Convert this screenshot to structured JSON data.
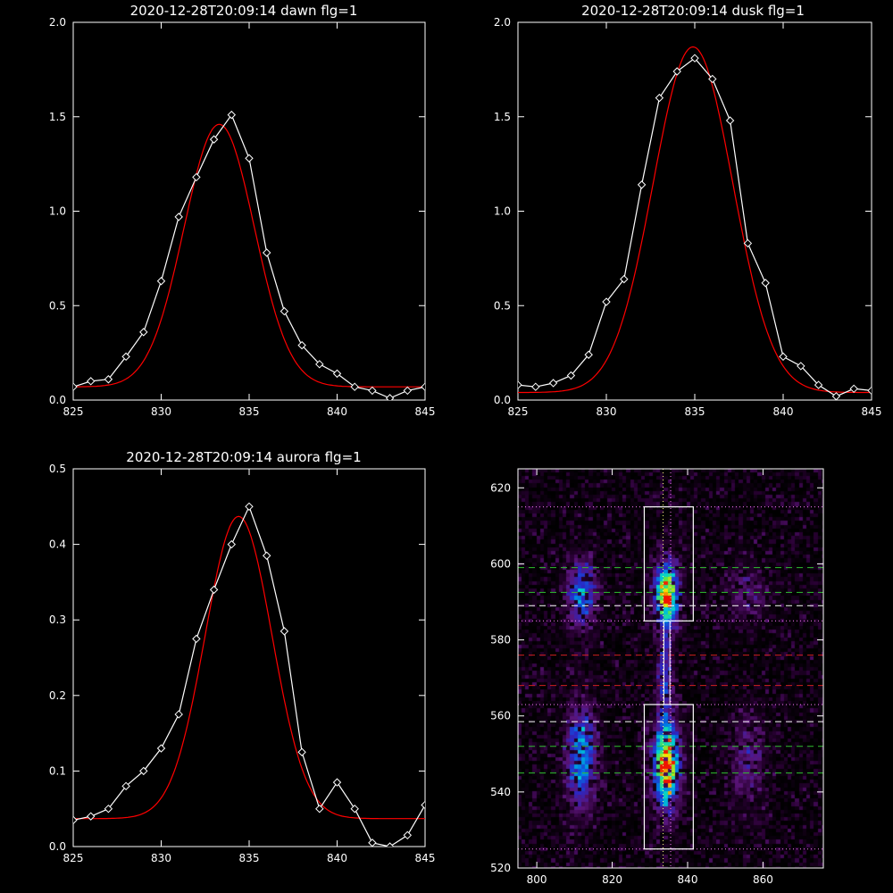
{
  "chart_data": [
    {
      "type": "line",
      "title": "2020-12-28T20:09:14 dawn flg=1",
      "xlim": [
        825,
        845
      ],
      "ylim": [
        0,
        2.0
      ],
      "xticks": [
        825,
        830,
        835,
        840,
        845
      ],
      "yticks": [
        0.0,
        0.5,
        1.0,
        1.5,
        2.0
      ],
      "xtick_labels": [
        "825",
        "830",
        "835",
        "840",
        "845"
      ],
      "ytick_labels": [
        "0.0",
        "0.5",
        "1.0",
        "1.5",
        "2.0"
      ],
      "series": [
        {
          "color": "#ffffff",
          "markers": "diamond",
          "x": [
            825,
            826,
            827,
            828,
            829,
            830,
            831,
            832,
            833,
            834,
            835,
            836,
            837,
            838,
            839,
            840,
            841,
            842,
            843,
            844,
            845
          ],
          "y": [
            0.07,
            0.1,
            0.11,
            0.23,
            0.36,
            0.63,
            0.97,
            1.18,
            1.38,
            1.51,
            1.28,
            0.78,
            0.47,
            0.29,
            0.19,
            0.14,
            0.07,
            0.05,
            0.01,
            0.05,
            0.07
          ]
        },
        {
          "color": "#ff0000",
          "markers": "none",
          "fit": {
            "amplitude": 1.39,
            "center": 833.3,
            "sigma": 2.0,
            "offset": 0.07
          }
        }
      ]
    },
    {
      "type": "line",
      "title": "2020-12-28T20:09:14 dusk flg=1",
      "xlim": [
        825,
        845
      ],
      "ylim": [
        0,
        2.0
      ],
      "xticks": [
        825,
        830,
        835,
        840,
        845
      ],
      "yticks": [
        0.0,
        0.5,
        1.0,
        1.5,
        2.0
      ],
      "xtick_labels": [
        "825",
        "830",
        "835",
        "840",
        "845"
      ],
      "ytick_labels": [
        "0.0",
        "0.5",
        "1.0",
        "1.5",
        "2.0"
      ],
      "series": [
        {
          "color": "#ffffff",
          "markers": "diamond",
          "x": [
            825,
            826,
            827,
            828,
            829,
            830,
            831,
            832,
            833,
            834,
            835,
            836,
            837,
            838,
            839,
            840,
            841,
            842,
            843,
            844,
            845
          ],
          "y": [
            0.08,
            0.07,
            0.09,
            0.13,
            0.24,
            0.52,
            0.64,
            1.14,
            1.6,
            1.74,
            1.81,
            1.7,
            1.48,
            0.83,
            0.62,
            0.23,
            0.18,
            0.08,
            0.02,
            0.06,
            0.05
          ]
        },
        {
          "color": "#ff0000",
          "markers": "none",
          "fit": {
            "amplitude": 1.83,
            "center": 834.9,
            "sigma": 2.25,
            "offset": 0.04
          }
        }
      ]
    },
    {
      "type": "line",
      "title": "2020-12-28T20:09:14 aurora flg=1",
      "xlim": [
        825,
        845
      ],
      "ylim": [
        0,
        0.5
      ],
      "xticks": [
        825,
        830,
        835,
        840,
        845
      ],
      "yticks": [
        0.0,
        0.1,
        0.2,
        0.3,
        0.4,
        0.5
      ],
      "xtick_labels": [
        "825",
        "830",
        "835",
        "840",
        "845"
      ],
      "ytick_labels": [
        "0.0",
        "0.1",
        "0.2",
        "0.3",
        "0.4",
        "0.5"
      ],
      "series": [
        {
          "color": "#ffffff",
          "markers": "diamond",
          "x": [
            825,
            826,
            827,
            828,
            829,
            830,
            831,
            832,
            833,
            834,
            835,
            836,
            837,
            838,
            839,
            840,
            841,
            842,
            843,
            844,
            845
          ],
          "y": [
            0.035,
            0.04,
            0.05,
            0.08,
            0.1,
            0.13,
            0.175,
            0.275,
            0.34,
            0.4,
            0.45,
            0.385,
            0.285,
            0.125,
            0.05,
            0.085,
            0.05,
            0.005,
            0.0,
            0.015,
            0.055
          ]
        },
        {
          "color": "#ff0000",
          "markers": "none",
          "fit": {
            "amplitude": 0.4,
            "center": 834.4,
            "sigma": 1.9,
            "offset": 0.037
          }
        }
      ]
    },
    {
      "type": "heatmap",
      "title": "",
      "xlim": [
        795,
        876
      ],
      "ylim": [
        520,
        625
      ],
      "xticks": [
        800,
        820,
        840,
        860
      ],
      "yticks": [
        520,
        540,
        560,
        580,
        600,
        620
      ],
      "xtick_labels": [
        "800",
        "820",
        "840",
        "860"
      ],
      "ytick_labels": [
        "520",
        "540",
        "560",
        "580",
        "600",
        "620"
      ],
      "blobs": [
        {
          "x": 834.5,
          "y": 592,
          "sx": 2.2,
          "sy": 5.5,
          "amp": 0.95
        },
        {
          "x": 834.5,
          "y": 547,
          "sx": 2.3,
          "sy": 7.5,
          "amp": 1.0
        },
        {
          "x": 834.0,
          "y": 570,
          "sx": 1.3,
          "sy": 9,
          "amp": 0.35
        },
        {
          "x": 812,
          "y": 592,
          "sx": 2.6,
          "sy": 6,
          "amp": 0.5
        },
        {
          "x": 812,
          "y": 549,
          "sx": 2.6,
          "sy": 9,
          "amp": 0.55
        },
        {
          "x": 856,
          "y": 592,
          "sx": 3.2,
          "sy": 5,
          "amp": 0.2
        },
        {
          "x": 856,
          "y": 548,
          "sx": 3.2,
          "sy": 8,
          "amp": 0.22
        }
      ],
      "boxes": [
        {
          "x0": 828.5,
          "x1": 841.5,
          "y0": 585,
          "y1": 615
        },
        {
          "x0": 828.5,
          "x1": 841.5,
          "y0": 525,
          "y1": 563
        }
      ],
      "vlines": [
        {
          "x": 833.5,
          "color": "#ffff80",
          "style": "dotted"
        },
        {
          "x": 835.5,
          "color": "#ff80ff",
          "style": "dotted"
        }
      ],
      "hlines": [
        {
          "y": 615,
          "color": "#ff80ff",
          "style": "dotted"
        },
        {
          "y": 585,
          "color": "#ff80ff",
          "style": "dotted"
        },
        {
          "y": 563,
          "color": "#ff80ff",
          "style": "dotted"
        },
        {
          "y": 525,
          "color": "#ff80ff",
          "style": "dotted"
        },
        {
          "y": 599,
          "color": "#30c030",
          "style": "dashed"
        },
        {
          "y": 592.5,
          "color": "#30c030",
          "style": "dashed"
        },
        {
          "y": 589,
          "color": "#ffffff",
          "style": "dashed"
        },
        {
          "y": 576,
          "color": "#d02020",
          "style": "dashed"
        },
        {
          "y": 568,
          "color": "#d02020",
          "style": "dashed"
        },
        {
          "y": 558.5,
          "color": "#ffffff",
          "style": "dashed"
        },
        {
          "y": 552,
          "color": "#30c030",
          "style": "dashed"
        },
        {
          "y": 545,
          "color": "#30c030",
          "style": "dashed"
        }
      ]
    }
  ]
}
